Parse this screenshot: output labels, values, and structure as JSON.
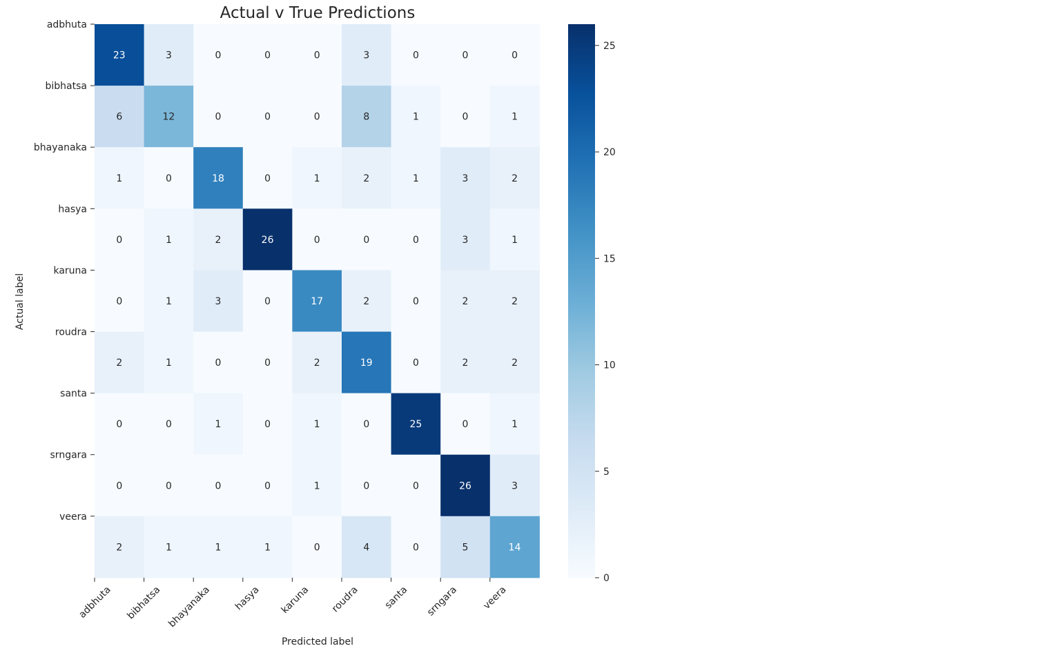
{
  "chart_data": {
    "type": "heatmap",
    "title": "Actual v True Predictions",
    "xlabel": "Predicted label",
    "ylabel": "Actual label",
    "row_labels": [
      "adbhuta",
      "bibhatsa",
      "bhayanaka",
      "hasya",
      "karuna",
      "roudra",
      "santa",
      "srngara",
      "veera"
    ],
    "col_labels": [
      "adbhuta",
      "bibhatsa",
      "bhayanaka",
      "hasya",
      "karuna",
      "roudra",
      "santa",
      "srngara",
      "veera"
    ],
    "values": [
      [
        23,
        3,
        0,
        0,
        0,
        3,
        0,
        0,
        0
      ],
      [
        6,
        12,
        0,
        0,
        0,
        8,
        1,
        0,
        1
      ],
      [
        1,
        0,
        18,
        0,
        1,
        2,
        1,
        3,
        2
      ],
      [
        0,
        1,
        2,
        26,
        0,
        0,
        0,
        3,
        1
      ],
      [
        0,
        1,
        3,
        0,
        17,
        2,
        0,
        2,
        2
      ],
      [
        2,
        1,
        0,
        0,
        2,
        19,
        0,
        2,
        2
      ],
      [
        0,
        0,
        1,
        0,
        1,
        0,
        25,
        0,
        1
      ],
      [
        0,
        0,
        0,
        0,
        1,
        0,
        0,
        26,
        3
      ],
      [
        2,
        1,
        1,
        1,
        0,
        4,
        0,
        5,
        14
      ]
    ],
    "colormap": "Blues",
    "color_range": [
      0,
      26
    ],
    "colorbar_ticks": [
      0,
      5,
      10,
      15,
      20,
      25
    ],
    "colorbar": "right",
    "grid": false
  }
}
